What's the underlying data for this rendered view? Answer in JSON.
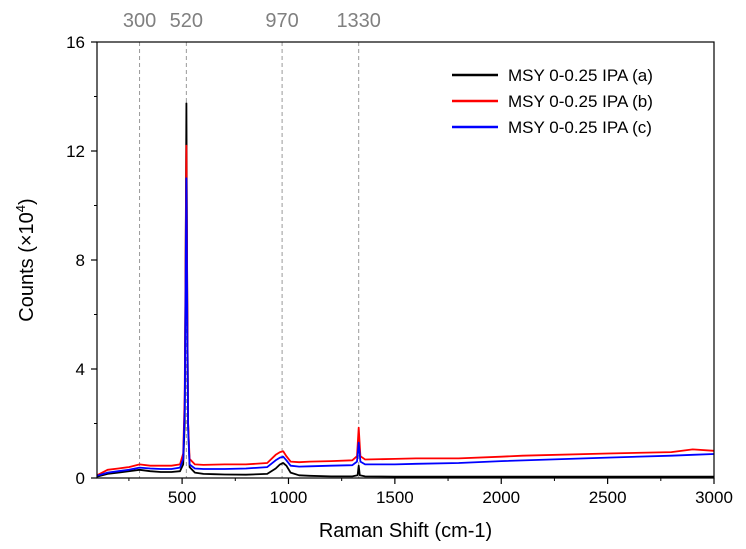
{
  "chart_data": {
    "type": "line",
    "xlabel": "Raman Shift (cm-1)",
    "ylabel_main": "Counts (×10",
    "ylabel_sup": "4",
    "ylabel_close": ")",
    "xlim": [
      100,
      3000
    ],
    "ylim": [
      0,
      16
    ],
    "x_ticks": [
      500,
      1000,
      1500,
      2000,
      2500,
      3000
    ],
    "y_ticks": [
      0,
      4,
      8,
      12,
      16
    ],
    "grid": false,
    "legend_position": "top-right",
    "reference_lines": [
      {
        "x": 300,
        "label": "300"
      },
      {
        "x": 520,
        "label": "520"
      },
      {
        "x": 970,
        "label": "970"
      },
      {
        "x": 1330,
        "label": "1330"
      }
    ],
    "series": [
      {
        "name": "MSY 0-0.25 IPA (a)",
        "color": "#000000",
        "points": [
          [
            100,
            0.05
          ],
          [
            150,
            0.15
          ],
          [
            200,
            0.2
          ],
          [
            250,
            0.25
          ],
          [
            300,
            0.3
          ],
          [
            350,
            0.25
          ],
          [
            400,
            0.22
          ],
          [
            450,
            0.22
          ],
          [
            490,
            0.25
          ],
          [
            505,
            0.5
          ],
          [
            512,
            2
          ],
          [
            516,
            7
          ],
          [
            520,
            13.75
          ],
          [
            524,
            7
          ],
          [
            528,
            2
          ],
          [
            535,
            0.4
          ],
          [
            560,
            0.2
          ],
          [
            600,
            0.15
          ],
          [
            650,
            0.14
          ],
          [
            700,
            0.13
          ],
          [
            800,
            0.12
          ],
          [
            900,
            0.15
          ],
          [
            940,
            0.35
          ],
          [
            960,
            0.5
          ],
          [
            975,
            0.55
          ],
          [
            990,
            0.45
          ],
          [
            1010,
            0.2
          ],
          [
            1050,
            0.1
          ],
          [
            1100,
            0.08
          ],
          [
            1200,
            0.06
          ],
          [
            1300,
            0.06
          ],
          [
            1325,
            0.1
          ],
          [
            1330,
            0.45
          ],
          [
            1335,
            0.1
          ],
          [
            1360,
            0.06
          ],
          [
            1500,
            0.05
          ],
          [
            2000,
            0.05
          ],
          [
            2500,
            0.05
          ],
          [
            3000,
            0.05
          ]
        ]
      },
      {
        "name": "MSY 0-0.25 IPA (b)",
        "color": "#ff0000",
        "points": [
          [
            100,
            0.1
          ],
          [
            150,
            0.3
          ],
          [
            200,
            0.35
          ],
          [
            250,
            0.4
          ],
          [
            300,
            0.5
          ],
          [
            350,
            0.45
          ],
          [
            400,
            0.45
          ],
          [
            450,
            0.45
          ],
          [
            490,
            0.5
          ],
          [
            505,
            0.9
          ],
          [
            512,
            3
          ],
          [
            516,
            7.5
          ],
          [
            520,
            12.2
          ],
          [
            524,
            7
          ],
          [
            528,
            2
          ],
          [
            535,
            0.7
          ],
          [
            560,
            0.5
          ],
          [
            600,
            0.48
          ],
          [
            700,
            0.5
          ],
          [
            800,
            0.5
          ],
          [
            900,
            0.55
          ],
          [
            940,
            0.85
          ],
          [
            960,
            0.95
          ],
          [
            975,
            0.98
          ],
          [
            990,
            0.8
          ],
          [
            1010,
            0.6
          ],
          [
            1050,
            0.58
          ],
          [
            1100,
            0.6
          ],
          [
            1200,
            0.62
          ],
          [
            1300,
            0.65
          ],
          [
            1322,
            0.8
          ],
          [
            1330,
            1.85
          ],
          [
            1338,
            0.8
          ],
          [
            1360,
            0.68
          ],
          [
            1500,
            0.7
          ],
          [
            1600,
            0.72
          ],
          [
            1800,
            0.72
          ],
          [
            2000,
            0.78
          ],
          [
            2100,
            0.82
          ],
          [
            2500,
            0.9
          ],
          [
            2800,
            0.95
          ],
          [
            2900,
            1.05
          ],
          [
            3000,
            1.0
          ]
        ]
      },
      {
        "name": "MSY 0-0.25 IPA (c)",
        "color": "#0000ff",
        "points": [
          [
            100,
            0.08
          ],
          [
            150,
            0.2
          ],
          [
            200,
            0.25
          ],
          [
            250,
            0.3
          ],
          [
            300,
            0.38
          ],
          [
            350,
            0.35
          ],
          [
            400,
            0.33
          ],
          [
            450,
            0.33
          ],
          [
            490,
            0.38
          ],
          [
            505,
            0.7
          ],
          [
            512,
            2.5
          ],
          [
            516,
            6.5
          ],
          [
            520,
            11.0
          ],
          [
            524,
            6
          ],
          [
            528,
            1.8
          ],
          [
            535,
            0.5
          ],
          [
            560,
            0.35
          ],
          [
            600,
            0.33
          ],
          [
            700,
            0.33
          ],
          [
            800,
            0.35
          ],
          [
            900,
            0.4
          ],
          [
            940,
            0.65
          ],
          [
            960,
            0.75
          ],
          [
            975,
            0.78
          ],
          [
            990,
            0.65
          ],
          [
            1010,
            0.45
          ],
          [
            1050,
            0.42
          ],
          [
            1100,
            0.43
          ],
          [
            1200,
            0.45
          ],
          [
            1300,
            0.47
          ],
          [
            1322,
            0.6
          ],
          [
            1330,
            1.3
          ],
          [
            1338,
            0.6
          ],
          [
            1360,
            0.5
          ],
          [
            1500,
            0.5
          ],
          [
            1600,
            0.52
          ],
          [
            1800,
            0.55
          ],
          [
            2000,
            0.62
          ],
          [
            2500,
            0.75
          ],
          [
            2800,
            0.82
          ],
          [
            2900,
            0.85
          ],
          [
            3000,
            0.88
          ]
        ]
      }
    ]
  }
}
